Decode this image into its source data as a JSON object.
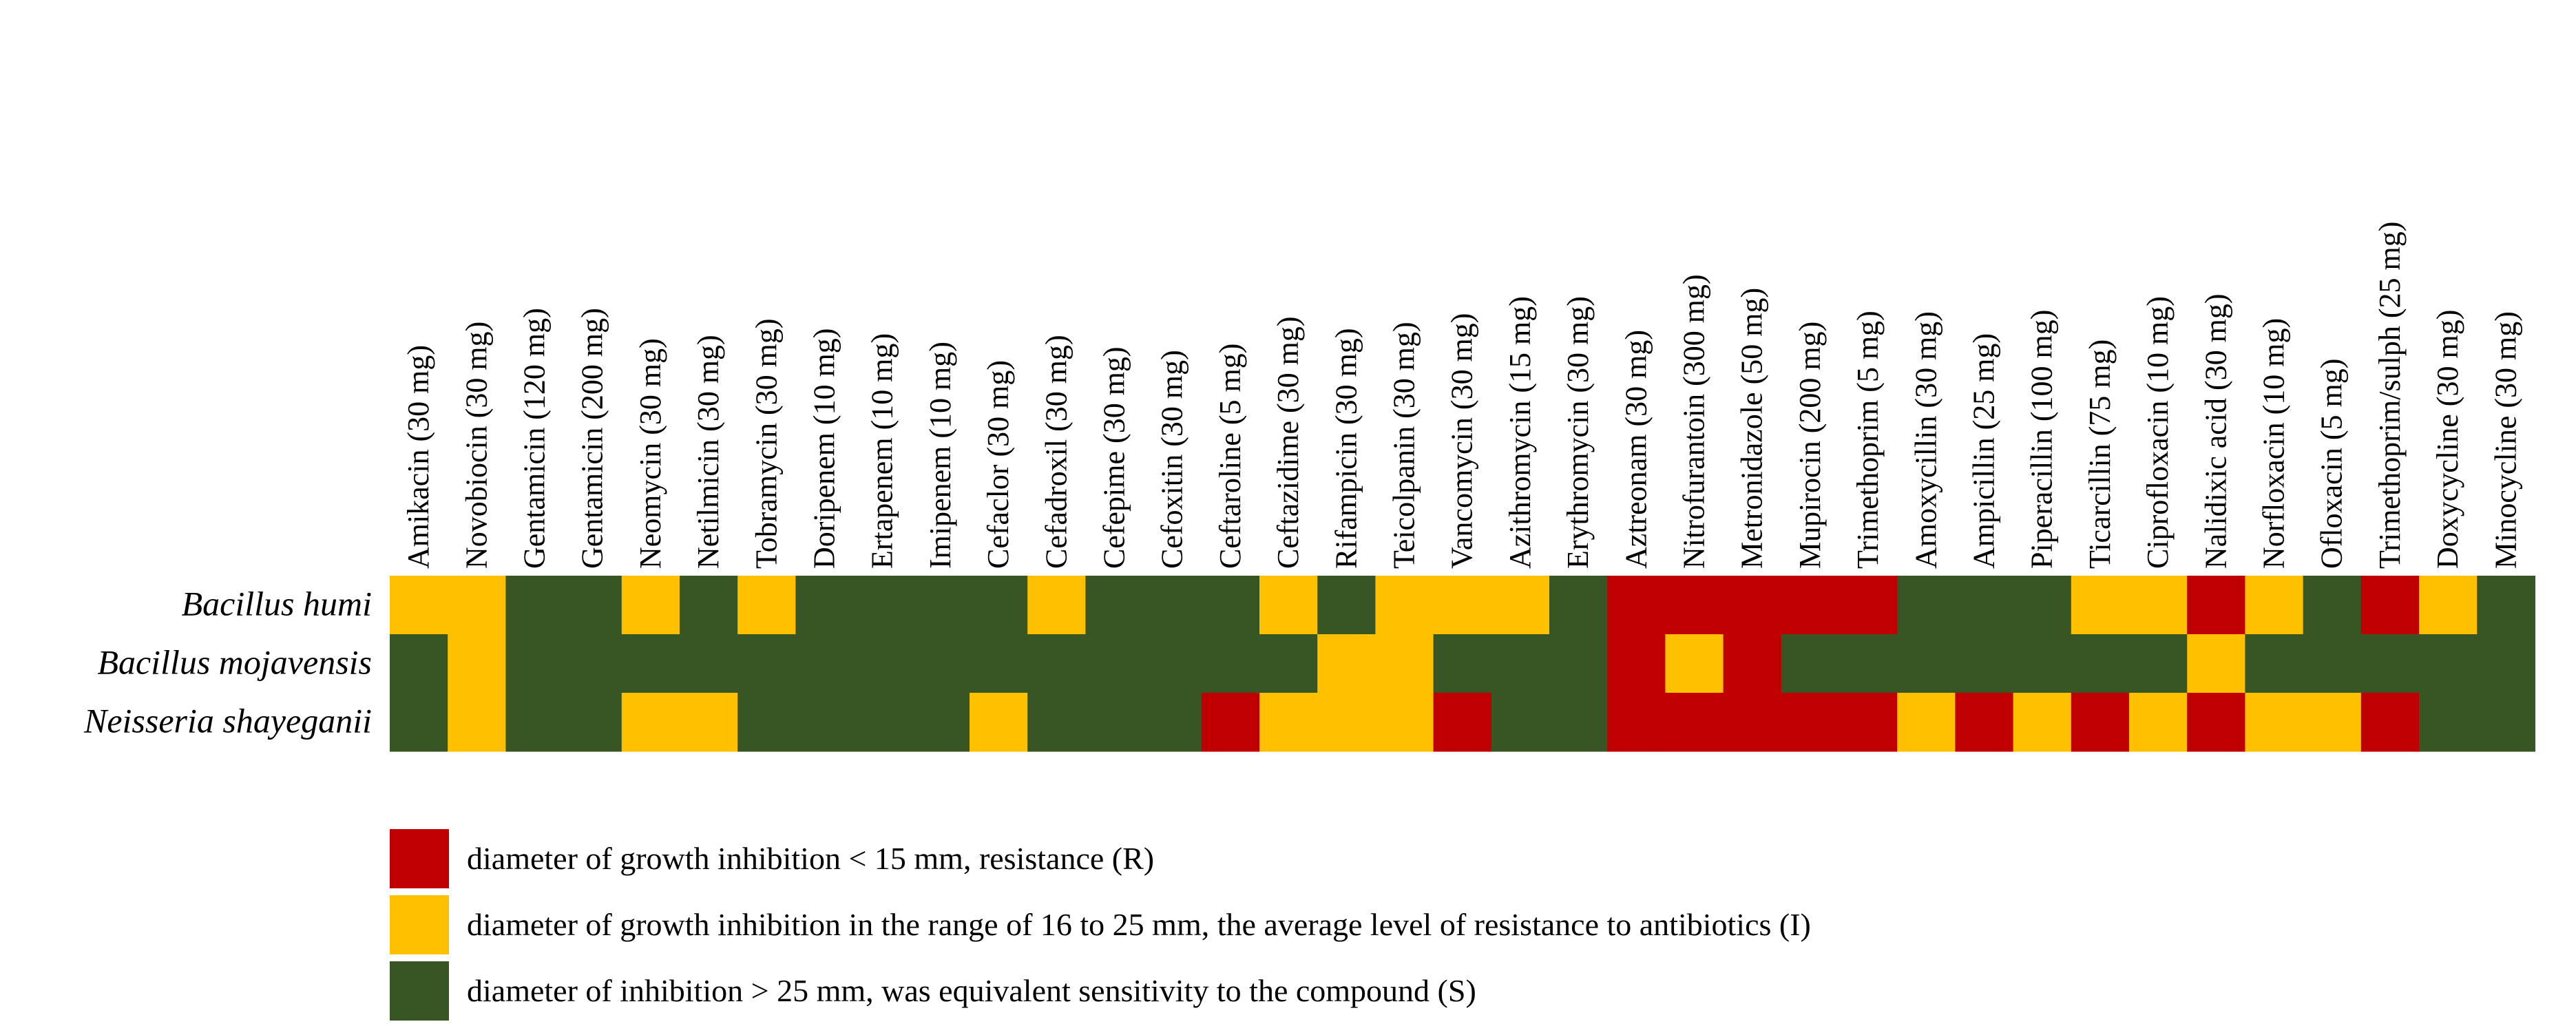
{
  "chart_data": {
    "type": "heatmap",
    "title": "",
    "antibiotics": [
      "Amikacin (30 mg)",
      "Novobiocin (30 mg)",
      "Gentamicin (120 mg)",
      "Gentamicin (200 mg)",
      "Neomycin (30 mg)",
      "Netilmicin (30 mg)",
      "Tobramycin (30 mg)",
      "Doripenem (10 mg)",
      "Ertapenem (10 mg)",
      "Imipenem (10 mg)",
      "Cefaclor (30 mg)",
      "Cefadroxil (30 mg)",
      "Cefepime (30 mg)",
      "Cefoxitin (30 mg)",
      "Ceftaroline (5 mg)",
      "Ceftazidime (30 mg)",
      "Rifampicin (30 mg)",
      "Teicolpanin (30 mg)",
      "Vancomycin (30 mg)",
      "Azithromycin (15 mg)",
      "Erythromycin (30 mg)",
      "Aztreonam (30 mg)",
      "Nitrofurantoin (300 mg)",
      "Metronidazole (50 mg)",
      "Mupirocin (200 mg)",
      "Trimethoprim (5 mg)",
      "Amoxycillin (30 mg)",
      "Ampicillin (25 mg)",
      "Piperacillin (100 mg)",
      "Ticarcillin (75 mg)",
      "Ciprofloxacin (10 mg)",
      "Nalidixic acid (30 mg)",
      "Norfloxacin (10 mg)",
      "Ofloxacin (5 mg)",
      "Trimethoprim/sulph (25 mg)",
      "Doxycycline (30 mg)",
      "Minocycline (30 mg)"
    ],
    "organisms": [
      "Bacillus humi",
      "Bacillus mojavensis",
      "Neisseria shayeganii"
    ],
    "values": [
      [
        "I",
        "I",
        "S",
        "S",
        "I",
        "S",
        "I",
        "S",
        "S",
        "S",
        "S",
        "I",
        "S",
        "S",
        "S",
        "I",
        "S",
        "I",
        "I",
        "I",
        "S",
        "R",
        "R",
        "R",
        "R",
        "R",
        "S",
        "S",
        "S",
        "I",
        "I",
        "R",
        "I",
        "S",
        "R",
        "I",
        "S"
      ],
      [
        "S",
        "I",
        "S",
        "S",
        "S",
        "S",
        "S",
        "S",
        "S",
        "S",
        "S",
        "S",
        "S",
        "S",
        "S",
        "S",
        "I",
        "I",
        "S",
        "S",
        "S",
        "R",
        "I",
        "R",
        "S",
        "S",
        "S",
        "S",
        "S",
        "S",
        "S",
        "I",
        "S",
        "S",
        "S",
        "S",
        "S"
      ],
      [
        "S",
        "I",
        "S",
        "S",
        "I",
        "I",
        "S",
        "S",
        "S",
        "S",
        "I",
        "S",
        "S",
        "S",
        "R",
        "I",
        "I",
        "I",
        "R",
        "S",
        "S",
        "R",
        "R",
        "R",
        "R",
        "R",
        "I",
        "R",
        "I",
        "R",
        "I",
        "R",
        "I",
        "I",
        "R",
        "S",
        "S"
      ]
    ],
    "categories_legend": [
      {
        "code": "R",
        "color": "#c00000",
        "label": "diameter of growth inhibition  < 15 mm, resistance (R)"
      },
      {
        "code": "I",
        "color": "#ffc000",
        "label": "diameter of growth inhibition in the range of 16 to 25 mm, the average level of resistance to antibiotics (I)"
      },
      {
        "code": "S",
        "color": "#375623",
        "label": "diameter of inhibition  > 25 mm, was equivalent sensitivity to the compound (S)"
      }
    ]
  }
}
